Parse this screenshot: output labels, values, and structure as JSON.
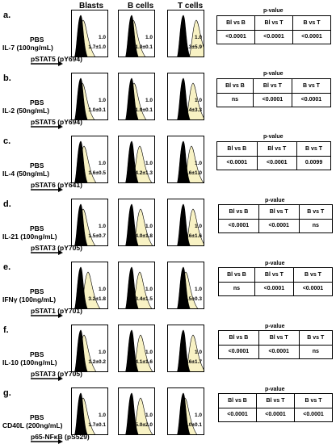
{
  "headers": {
    "blasts": "Blasts",
    "b_cells": "B cells",
    "t_cells": "T cells"
  },
  "pvalue_title": "p-value",
  "comparisons": [
    "Bl vs B",
    "Bl vs T",
    "B vs T"
  ],
  "panels": [
    {
      "letter": "a.",
      "pbs": "PBS",
      "condition": "IL-7 (100ng/mL)",
      "marker": "pSTAT5 (pY694)",
      "blasts": {
        "top": "1.0",
        "bottom": "1.7±1.0"
      },
      "b": {
        "top": "1.0",
        "bottom": "1.0±0.1"
      },
      "t": {
        "top": "1.0",
        "bottom": "14.3±5.9"
      },
      "pvalues": [
        "<0.0001",
        "<0.0001",
        "<0.0001"
      ]
    },
    {
      "letter": "b.",
      "pbs": "PBS",
      "condition": "IL-2 (50ng/mL)",
      "marker": "pSTAT5 (pY694)",
      "blasts": {
        "top": "1.0",
        "bottom": "1.0±0.1"
      },
      "b": {
        "top": "1.0",
        "bottom": "1.0±0.1"
      },
      "t": {
        "top": "1.0",
        "bottom": "5.4±3.3"
      },
      "pvalues": [
        "ns",
        "<0.0001",
        "<0.0001"
      ]
    },
    {
      "letter": "c.",
      "pbs": "PBS",
      "condition": "IL-4 (50ng/mL)",
      "marker": "pSTAT6 (pY641)",
      "blasts": {
        "top": "1.0",
        "bottom": "1.6±0.5"
      },
      "b": {
        "top": "1.0",
        "bottom": "4.2±1.3"
      },
      "t": {
        "top": "1.0",
        "bottom": "3.6±1.0"
      },
      "pvalues": [
        "<0.0001",
        "<0.0001",
        "0.0099"
      ]
    },
    {
      "letter": "d.",
      "pbs": "PBS",
      "condition": "IL-21 (100ng/mL)",
      "marker": "pSTAT3 (pY705)",
      "blasts": {
        "top": "1.0",
        "bottom": "1.5±0.7"
      },
      "b": {
        "top": "1.0",
        "bottom": "4.0±1.8"
      },
      "t": {
        "top": "1.0",
        "bottom": "4.6±1.6"
      },
      "pvalues": [
        "<0.0001",
        "<0.0001",
        "ns"
      ]
    },
    {
      "letter": "e.",
      "pbs": "PBS",
      "condition": "IFNγ (100ng/mL)",
      "marker": "pSTAT1 (pY701)",
      "blasts": {
        "top": "1.0",
        "bottom": "3.2±1.8"
      },
      "b": {
        "top": "1.0",
        "bottom": "3.4±1.5"
      },
      "t": {
        "top": "1.0",
        "bottom": "1.5±0.3"
      },
      "pvalues": [
        "ns",
        "<0.0001",
        "<0.0001"
      ]
    },
    {
      "letter": "f.",
      "pbs": "PBS",
      "condition": "IL-10 (100ng/mL)",
      "marker": "pSTAT3 (pY705)",
      "blasts": {
        "top": "1.0",
        "bottom": "1.2±0.2"
      },
      "b": {
        "top": "1.0",
        "bottom": "4.1±1.6"
      },
      "t": {
        "top": "1.0",
        "bottom": "4.6±1.7"
      },
      "pvalues": [
        "<0.0001",
        "<0.0001",
        "ns"
      ]
    },
    {
      "letter": "g.",
      "pbs": "PBS",
      "condition": "CD40L (200ng/mL)",
      "marker": "p65-NFκB (pS529)",
      "blasts": {
        "top": "1.0",
        "bottom": "1.7±0.1"
      },
      "b": {
        "top": "1.0",
        "bottom": "5.0±2.0"
      },
      "t": {
        "top": "1.0",
        "bottom": "1.0±0.1"
      },
      "pvalues": [
        "<0.0001",
        "<0.0001",
        "<0.0001"
      ]
    }
  ]
}
